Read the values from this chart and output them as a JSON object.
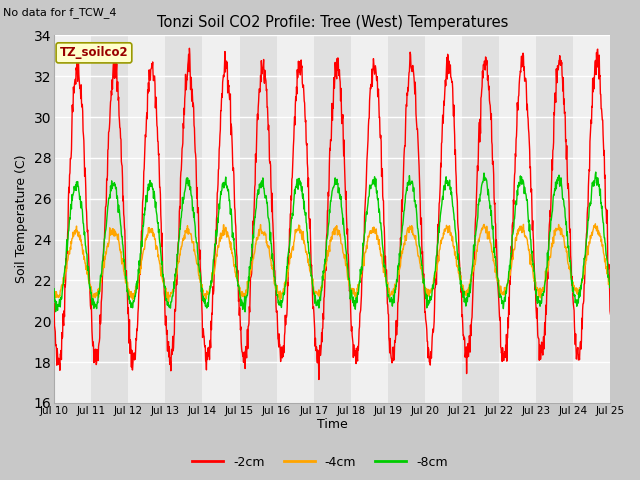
{
  "title": "Tonzi Soil CO2 Profile: Tree (West) Temperatures",
  "subtitle": "No data for f_TCW_4",
  "ylabel": "Soil Temperature (C)",
  "xlabel": "Time",
  "legend_label": "TZ_soilco2",
  "ylim": [
    16,
    34
  ],
  "yticks": [
    16,
    18,
    20,
    22,
    24,
    26,
    28,
    30,
    32,
    34
  ],
  "series_labels": [
    "-2cm",
    "-4cm",
    "-8cm"
  ],
  "series_colors": [
    "#ff0000",
    "#ffa500",
    "#00cc00"
  ],
  "fig_bg": "#c8c8c8",
  "plot_bg": "#f0f0f0",
  "band_even": "#f0f0f0",
  "band_odd": "#e0e0e0",
  "line_width": 1.0,
  "n_days": 15,
  "points_per_day": 96
}
